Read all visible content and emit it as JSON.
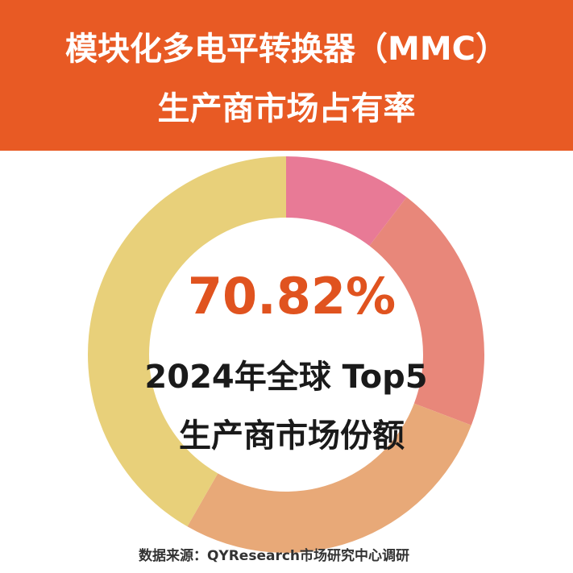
{
  "chart_data": {
    "type": "pie",
    "donut": true,
    "title": "模块化多电平转换器（MMC）",
    "subtitle": "生产商市场占有率",
    "values": [
      10.4,
      20.4,
      27.5,
      41.7
    ],
    "colors": [
      "#e87a96",
      "#e8877a",
      "#e8a978",
      "#e8d07a"
    ],
    "center_value": "70.82%",
    "center_label": [
      "2024年全球 Top5",
      "生产商市场份额"
    ],
    "source": "数据来源：QYResearch市场研究中心调研"
  }
}
